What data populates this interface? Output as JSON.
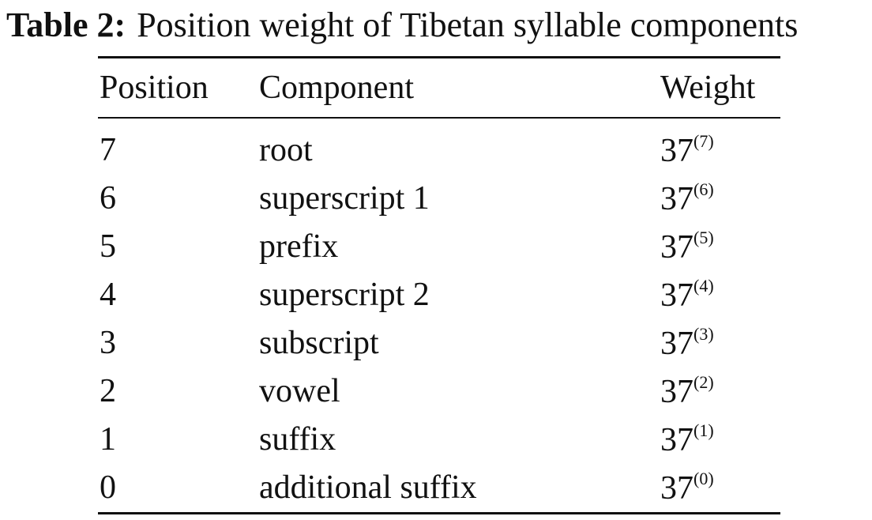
{
  "caption": {
    "label": "Table 2:",
    "text": "Position weight of Tibetan syllable components"
  },
  "table": {
    "header": [
      "Position",
      "Component",
      "Weight"
    ],
    "rows": [
      [
        "7",
        "root",
        {
          "base": "37",
          "exp": "(7)"
        }
      ],
      [
        "6",
        "superscript 1",
        {
          "base": "37",
          "exp": "(6)"
        }
      ],
      [
        "5",
        "prefix",
        {
          "base": "37",
          "exp": "(5)"
        }
      ],
      [
        "4",
        "superscript 2",
        {
          "base": "37",
          "exp": "(4)"
        }
      ],
      [
        "3",
        "subscript",
        {
          "base": "37",
          "exp": "(3)"
        }
      ],
      [
        "2",
        "vowel",
        {
          "base": "37",
          "exp": "(2)"
        }
      ],
      [
        "1",
        "suffix",
        {
          "base": "37",
          "exp": "(1)"
        }
      ],
      [
        "0",
        "additional suffix",
        {
          "base": "37",
          "exp": "(0)"
        }
      ]
    ]
  }
}
